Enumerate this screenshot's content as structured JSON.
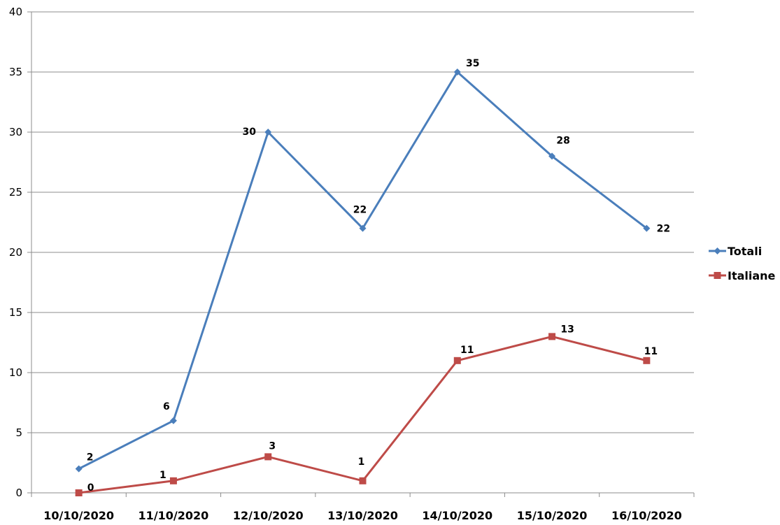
{
  "chart_data": {
    "type": "line",
    "categories": [
      "10/10/2020",
      "11/10/2020",
      "12/10/2020",
      "13/10/2020",
      "14/10/2020",
      "15/10/2020",
      "16/10/2020"
    ],
    "ylim": [
      0,
      40
    ],
    "yticks": [
      0,
      5,
      10,
      15,
      20,
      25,
      30,
      35,
      40
    ],
    "grid": true,
    "legend": "right",
    "series": [
      {
        "name": "Totali",
        "values": [
          2,
          6,
          30,
          22,
          35,
          28,
          22
        ],
        "color": "#4a7ebb",
        "marker": "diamond",
        "labels": [
          "2",
          "6",
          "30",
          "22",
          "35",
          "28",
          "22"
        ]
      },
      {
        "name": "Italiane",
        "values": [
          0,
          1,
          3,
          1,
          11,
          13,
          11
        ],
        "color": "#be4b48",
        "marker": "square",
        "labels": [
          "0",
          "1",
          "3",
          "1",
          "11",
          "13",
          "11"
        ]
      }
    ]
  }
}
